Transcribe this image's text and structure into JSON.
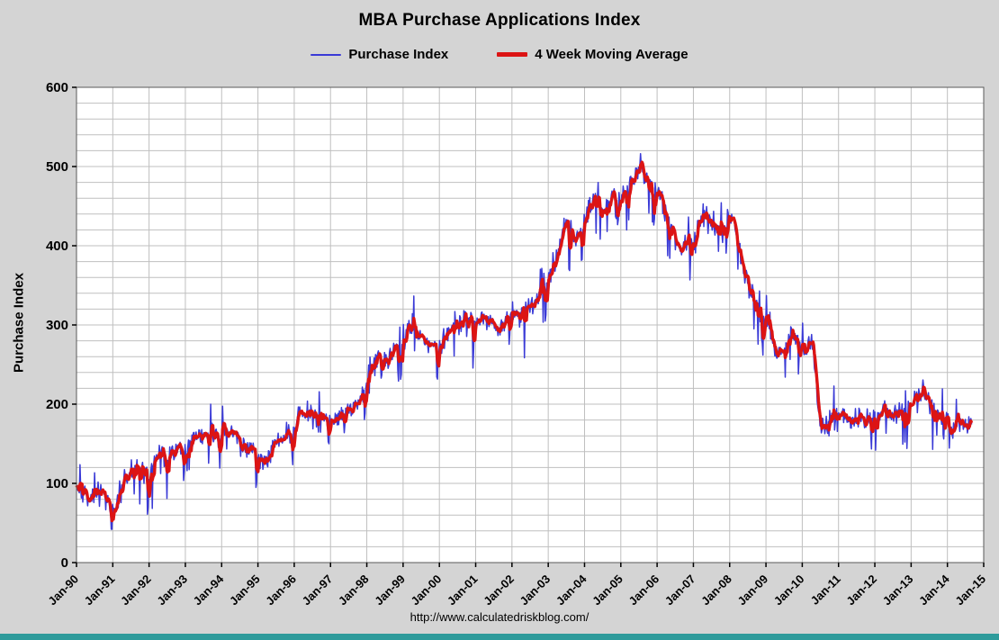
{
  "page": {
    "background": "#d4d4d4",
    "bottom_strip_color": "#2e9b9b"
  },
  "chart_data": {
    "type": "line",
    "title": "MBA Purchase Applications Index",
    "xlabel": "",
    "ylabel": "Purchase Index",
    "annotation": "http://www.calculatedriskblog.com/",
    "ylim": [
      0,
      600
    ],
    "y_major_ticks": [
      0,
      100,
      200,
      300,
      400,
      500,
      600
    ],
    "y_minor_step": 20,
    "x_range_years": [
      1990,
      2015
    ],
    "x_tick_labels": [
      "Jan-90",
      "Jan-91",
      "Jan-92",
      "Jan-93",
      "Jan-94",
      "Jan-95",
      "Jan-96",
      "Jan-97",
      "Jan-98",
      "Jan-99",
      "Jan-00",
      "Jan-01",
      "Jan-02",
      "Jan-03",
      "Jan-04",
      "Jan-05",
      "Jan-06",
      "Jan-07",
      "Jan-08",
      "Jan-09",
      "Jan-10",
      "Jan-11",
      "Jan-12",
      "Jan-13",
      "Jan-14",
      "Jan-15"
    ],
    "grid": true,
    "legend_position": "top",
    "plot_background": "#ffffff",
    "grid_color": "#bfbfbf",
    "series": [
      {
        "name": "Purchase Index",
        "color": "#3a3ad6",
        "style": "weekly_noisy",
        "noise_seed": 19901,
        "noise_amp": 20
      },
      {
        "name": "4 Week Moving Average",
        "color": "#dc1414",
        "resolution": "monthly",
        "start": "1990-01",
        "end": "2014-09",
        "values": [
          95,
          93,
          92,
          90,
          88,
          87,
          86,
          85,
          84,
          82,
          80,
          72,
          65,
          72,
          85,
          95,
          105,
          110,
          112,
          115,
          118,
          120,
          117,
          108,
          100,
          115,
          130,
          140,
          145,
          140,
          135,
          138,
          140,
          143,
          146,
          138,
          142,
          150,
          155,
          160,
          158,
          162,
          165,
          160,
          157,
          162,
          166,
          156,
          165,
          170,
          168,
          165,
          160,
          156,
          151,
          148,
          146,
          143,
          142,
          138,
          130,
          127,
          125,
          131,
          138,
          145,
          150,
          155,
          158,
          160,
          162,
          158,
          170,
          178,
          182,
          185,
          188,
          190,
          185,
          182,
          180,
          183,
          186,
          178,
          177,
          180,
          182,
          185,
          188,
          190,
          192,
          195,
          198,
          200,
          205,
          212,
          228,
          240,
          248,
          252,
          255,
          258,
          260,
          262,
          265,
          268,
          272,
          268,
          275,
          285,
          295,
          300,
          295,
          290,
          285,
          280,
          278,
          275,
          272,
          268,
          272,
          278,
          285,
          290,
          295,
          300,
          297,
          302,
          305,
          308,
          310,
          303,
          300,
          306,
          310,
          308,
          305,
          302,
          299,
          297,
          295,
          305,
          310,
          307,
          310,
          315,
          320,
          317,
          314,
          320,
          325,
          330,
          335,
          340,
          345,
          352,
          360,
          370,
          380,
          392,
          402,
          422,
          432,
          424,
          414,
          409,
          404,
          420,
          432,
          442,
          452,
          456,
          460,
          450,
          444,
          450,
          456,
          461,
          466,
          455,
          460,
          466,
          470,
          476,
          482,
          492,
          497,
          500,
          490,
          481,
          475,
          470,
          468,
          459,
          450,
          440,
          430,
          420,
          410,
          400,
          395,
          400,
          405,
          410,
          402,
          416,
          430,
          440,
          446,
          440,
          430,
          424,
          418,
          414,
          421,
          431,
          441,
          434,
          420,
          400,
          380,
          364,
          350,
          340,
          330,
          321,
          315,
          309,
          300,
          291,
          281,
          271,
          265,
          270,
          275,
          281,
          286,
          291,
          285,
          279,
          271,
          266,
          271,
          281,
          262,
          200,
          176,
          170,
          172,
          178,
          185,
          192,
          190,
          188,
          185,
          182,
          180,
          178,
          183,
          186,
          180,
          175,
          178,
          183,
          185,
          188,
          191,
          193,
          190,
          188,
          185,
          183,
          186,
          189,
          193,
          196,
          201,
          206,
          211,
          216,
          212,
          208,
          200,
          195,
          190,
          186,
          182,
          180,
          178,
          175,
          172,
          175,
          178,
          176,
          174,
          172,
          175
        ]
      }
    ]
  }
}
